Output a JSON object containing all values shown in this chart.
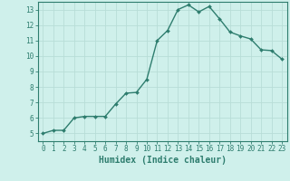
{
  "x": [
    0,
    1,
    2,
    3,
    4,
    5,
    6,
    7,
    8,
    9,
    10,
    11,
    12,
    13,
    14,
    15,
    16,
    17,
    18,
    19,
    20,
    21,
    22,
    23
  ],
  "y": [
    5.0,
    5.2,
    5.2,
    6.0,
    6.1,
    6.1,
    6.1,
    6.9,
    7.6,
    7.65,
    8.5,
    11.0,
    11.65,
    13.0,
    13.3,
    12.85,
    13.2,
    12.4,
    11.55,
    11.3,
    11.1,
    10.4,
    10.35,
    9.8
  ],
  "line_color": "#2e7d6e",
  "marker": "D",
  "marker_size": 2.0,
  "bg_color": "#cff0eb",
  "grid_color": "#b8ddd7",
  "xlabel": "Humidex (Indice chaleur)",
  "xlim": [
    -0.5,
    23.5
  ],
  "ylim": [
    4.5,
    13.5
  ],
  "yticks": [
    5,
    6,
    7,
    8,
    9,
    10,
    11,
    12,
    13
  ],
  "xticks": [
    0,
    1,
    2,
    3,
    4,
    5,
    6,
    7,
    8,
    9,
    10,
    11,
    12,
    13,
    14,
    15,
    16,
    17,
    18,
    19,
    20,
    21,
    22,
    23
  ],
  "tick_label_fontsize": 5.5,
  "xlabel_fontsize": 7.0,
  "axis_color": "#2e7d6e",
  "spine_color": "#2e7d6e",
  "linewidth": 1.0
}
